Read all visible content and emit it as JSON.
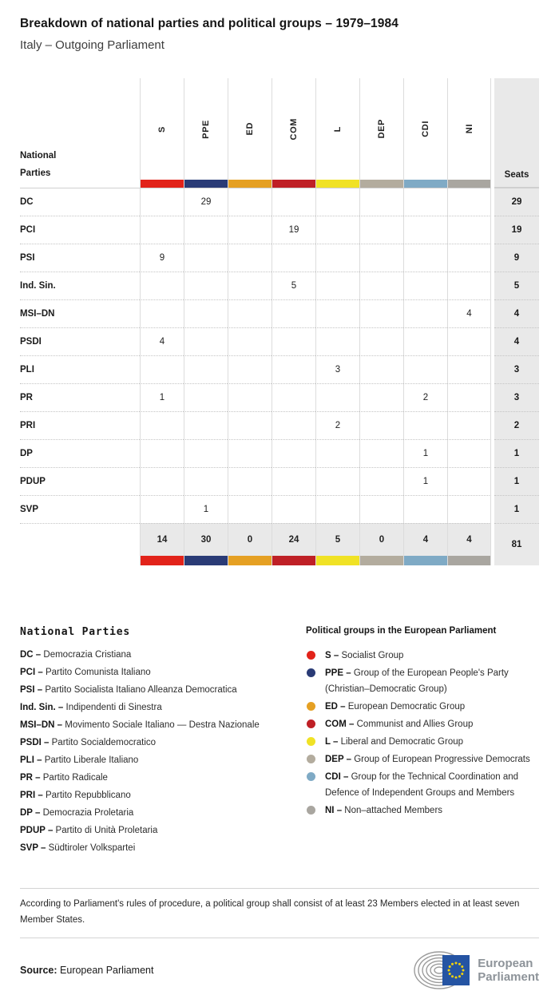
{
  "header": {
    "title": "Breakdown of national parties and political groups – 1979–1984",
    "subtitle": "Italy – Outgoing Parliament"
  },
  "table": {
    "corner_label": "National\nParties",
    "seats_label": "Seats",
    "groups": [
      {
        "code": "S",
        "color": "#e2231a"
      },
      {
        "code": "PPE",
        "color": "#2a3b76"
      },
      {
        "code": "ED",
        "color": "#e5a023"
      },
      {
        "code": "COM",
        "color": "#bf2026"
      },
      {
        "code": "L",
        "color": "#f0e225"
      },
      {
        "code": "DEP",
        "color": "#b3ac9e"
      },
      {
        "code": "CDI",
        "color": "#7faac5"
      },
      {
        "code": "NI",
        "color": "#a9a6a0"
      }
    ],
    "rows": [
      {
        "party": "DC",
        "values": [
          "",
          "29",
          "",
          "",
          "",
          "",
          "",
          ""
        ],
        "seats": "29"
      },
      {
        "party": "PCI",
        "values": [
          "",
          "",
          "",
          "19",
          "",
          "",
          "",
          ""
        ],
        "seats": "19"
      },
      {
        "party": "PSI",
        "values": [
          "9",
          "",
          "",
          "",
          "",
          "",
          "",
          ""
        ],
        "seats": "9"
      },
      {
        "party": "Ind. Sin.",
        "values": [
          "",
          "",
          "",
          "5",
          "",
          "",
          "",
          ""
        ],
        "seats": "5"
      },
      {
        "party": "MSI–DN",
        "values": [
          "",
          "",
          "",
          "",
          "",
          "",
          "",
          "4"
        ],
        "seats": "4"
      },
      {
        "party": "PSDI",
        "values": [
          "4",
          "",
          "",
          "",
          "",
          "",
          "",
          ""
        ],
        "seats": "4"
      },
      {
        "party": "PLI",
        "values": [
          "",
          "",
          "",
          "",
          "3",
          "",
          "",
          ""
        ],
        "seats": "3"
      },
      {
        "party": "PR",
        "values": [
          "1",
          "",
          "",
          "",
          "",
          "",
          "2",
          ""
        ],
        "seats": "3"
      },
      {
        "party": "PRI",
        "values": [
          "",
          "",
          "",
          "",
          "2",
          "",
          "",
          ""
        ],
        "seats": "2"
      },
      {
        "party": "DP",
        "values": [
          "",
          "",
          "",
          "",
          "",
          "",
          "1",
          ""
        ],
        "seats": "1"
      },
      {
        "party": "PDUP",
        "values": [
          "",
          "",
          "",
          "",
          "",
          "",
          "1",
          ""
        ],
        "seats": "1"
      },
      {
        "party": "SVP",
        "values": [
          "",
          "1",
          "",
          "",
          "",
          "",
          "",
          ""
        ],
        "seats": "1"
      }
    ],
    "totals": {
      "values": [
        "14",
        "30",
        "0",
        "24",
        "5",
        "0",
        "4",
        "4"
      ],
      "seats": "81"
    }
  },
  "legend_parties": {
    "title": "National Parties",
    "items": [
      {
        "abbr": "DC",
        "name": "Democrazia Cristiana"
      },
      {
        "abbr": "PCI",
        "name": "Partito Comunista Italiano"
      },
      {
        "abbr": "PSI",
        "name": "Partito Socialista Italiano Alleanza Democratica"
      },
      {
        "abbr": "Ind. Sin.",
        "name": "Indipendenti di Sinestra"
      },
      {
        "abbr": "MSI–DN",
        "name": "Movimento Sociale Italiano — Destra Nazionale"
      },
      {
        "abbr": "PSDI",
        "name": "Partito Socialdemocratico"
      },
      {
        "abbr": "PLI",
        "name": "Partito Liberale Italiano"
      },
      {
        "abbr": "PR",
        "name": "Partito Radicale"
      },
      {
        "abbr": "PRI",
        "name": "Partito Repubblicano"
      },
      {
        "abbr": "DP",
        "name": "Democrazia Proletaria"
      },
      {
        "abbr": "PDUP",
        "name": "Partito di Unità Proletaria"
      },
      {
        "abbr": "SVP",
        "name": "Südtiroler Volkspartei"
      }
    ]
  },
  "legend_groups": {
    "title": "Political groups in the European Parliament",
    "items": [
      {
        "code": "S",
        "color": "#e2231a",
        "name": "Socialist Group"
      },
      {
        "code": "PPE",
        "color": "#2a3b76",
        "name": "Group of the European People's Party (Christian–Democratic Group)"
      },
      {
        "code": "ED",
        "color": "#e5a023",
        "name": "European Democratic Group"
      },
      {
        "code": "COM",
        "color": "#bf2026",
        "name": "Communist and Allies Group"
      },
      {
        "code": "L",
        "color": "#f0e225",
        "name": "Liberal and Democratic Group"
      },
      {
        "code": "DEP",
        "color": "#b3ac9e",
        "name": "Group of European Progressive Democrats"
      },
      {
        "code": "CDI",
        "color": "#7faac5",
        "name": "Group for the Technical Coordination and Defence of Independent Groups and Members"
      },
      {
        "code": "NI",
        "color": "#a9a6a0",
        "name": "Non–attached Members"
      }
    ]
  },
  "footnote": "According to Parliament's rules of procedure, a political group shall consist of at least 23 Members elected in at least seven Member States.",
  "source": {
    "label": "Source:",
    "value": "European Parliament"
  },
  "logo": {
    "line1": "European",
    "line2": "Parliament"
  },
  "chart_data": {
    "type": "table",
    "title": "Breakdown of national parties and political groups – 1979–1984",
    "subtitle": "Italy – Outgoing Parliament",
    "columns": [
      "S",
      "PPE",
      "ED",
      "COM",
      "L",
      "DEP",
      "CDI",
      "NI"
    ],
    "parties": [
      "DC",
      "PCI",
      "PSI",
      "Ind. Sin.",
      "MSI–DN",
      "PSDI",
      "PLI",
      "PR",
      "PRI",
      "DP",
      "PDUP",
      "SVP"
    ],
    "values": [
      [
        null,
        29,
        null,
        null,
        null,
        null,
        null,
        null
      ],
      [
        null,
        null,
        null,
        19,
        null,
        null,
        null,
        null
      ],
      [
        9,
        null,
        null,
        null,
        null,
        null,
        null,
        null
      ],
      [
        null,
        null,
        null,
        5,
        null,
        null,
        null,
        null
      ],
      [
        null,
        null,
        null,
        null,
        null,
        null,
        null,
        4
      ],
      [
        4,
        null,
        null,
        null,
        null,
        null,
        null,
        null
      ],
      [
        null,
        null,
        null,
        null,
        3,
        null,
        null,
        null
      ],
      [
        1,
        null,
        null,
        null,
        null,
        null,
        2,
        null
      ],
      [
        null,
        null,
        null,
        null,
        2,
        null,
        null,
        null
      ],
      [
        null,
        null,
        null,
        null,
        null,
        null,
        1,
        null
      ],
      [
        null,
        null,
        null,
        null,
        null,
        null,
        1,
        null
      ],
      [
        null,
        1,
        null,
        null,
        null,
        null,
        null,
        null
      ]
    ],
    "row_seats": [
      29,
      19,
      9,
      5,
      4,
      4,
      3,
      3,
      2,
      1,
      1,
      1
    ],
    "column_totals": [
      14,
      30,
      0,
      24,
      5,
      0,
      4,
      4
    ],
    "total_seats": 81
  }
}
